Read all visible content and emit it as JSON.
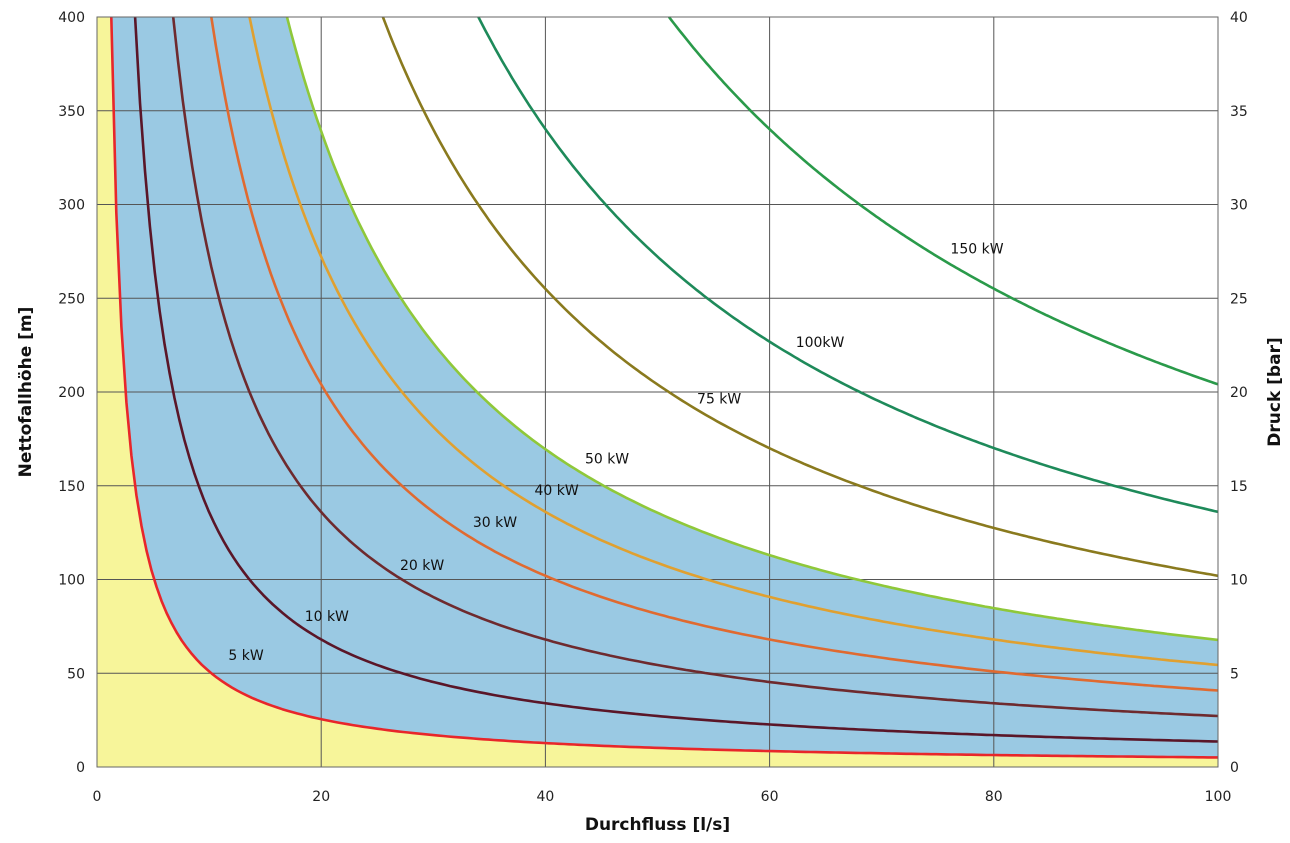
{
  "chart_data": {
    "type": "line",
    "xlabel": "Durchfluss [l/s]",
    "ylabel": "Nettofallhöhe [m]",
    "y2label": "Druck [bar]",
    "xlim": [
      0,
      100
    ],
    "ylim": [
      0,
      400
    ],
    "y2lim": [
      0,
      40
    ],
    "x_ticks": [
      0,
      20,
      40,
      60,
      80,
      100
    ],
    "y_ticks": [
      0,
      50,
      100,
      150,
      200,
      250,
      300,
      350,
      400
    ],
    "y2_ticks": [
      0,
      5,
      10,
      15,
      20,
      25,
      30,
      35,
      40
    ],
    "grid": true,
    "regions": [
      {
        "name": "below_5kW",
        "color": "#f7f59a",
        "bounded_by": [
          "axis",
          "5 kW"
        ]
      },
      {
        "name": "5_to_50kW",
        "color": "#9ac9e3",
        "bounded_by": [
          "5 kW",
          "50 kW"
        ]
      }
    ],
    "series": [
      {
        "name": "5 kW",
        "power_kw": 5,
        "color": "#e8262a",
        "label": {
          "x": 13.3,
          "y": 57
        },
        "x": [
          1.27,
          2,
          5,
          10,
          13.3,
          20,
          40,
          60,
          80,
          100
        ],
        "values": [
          400,
          255,
          102,
          51,
          38.3,
          25.5,
          12.7,
          8.5,
          6.4,
          5.1
        ]
      },
      {
        "name": "10 kW",
        "power_kw": 10,
        "color": "#5a1628",
        "label": {
          "x": 20.5,
          "y": 78
        },
        "x": [
          3.3,
          5,
          10,
          20,
          40,
          60,
          80,
          100
        ],
        "values": [
          400,
          270,
          135,
          68,
          34,
          22.7,
          17,
          13.5
        ]
      },
      {
        "name": "20 kW",
        "power_kw": 20,
        "color": "#6e2a2e",
        "label": {
          "x": 29,
          "y": 105
        },
        "x": [
          6.8,
          10,
          20,
          29,
          40,
          60,
          80,
          100
        ],
        "values": [
          400,
          272,
          136,
          94,
          68,
          45.3,
          34,
          27.2
        ]
      },
      {
        "name": "30 kW",
        "power_kw": 30,
        "color": "#e06a30",
        "label": {
          "x": 35.5,
          "y": 128
        },
        "x": [
          10.2,
          20,
          35.5,
          40,
          60,
          80,
          100
        ],
        "values": [
          400,
          204,
          115,
          102,
          68,
          51,
          40.8
        ]
      },
      {
        "name": "40 kW",
        "power_kw": 40,
        "color": "#e0a030",
        "label": {
          "x": 41,
          "y": 145
        },
        "x": [
          13.6,
          20,
          41,
          60,
          80,
          100
        ],
        "values": [
          400,
          272,
          133,
          90.7,
          68,
          54.4
        ]
      },
      {
        "name": "50 kW",
        "power_kw": 50,
        "color": "#8fc83a",
        "label": {
          "x": 45.5,
          "y": 162
        },
        "x": [
          17,
          20,
          40,
          45.5,
          60,
          80,
          100
        ],
        "values": [
          400,
          340,
          170,
          149,
          113,
          85,
          68
        ]
      },
      {
        "name": "75 kW",
        "power_kw": 75,
        "color": "#8a7a1e",
        "label": {
          "x": 55.5,
          "y": 194
        },
        "x": [
          25.5,
          40,
          55.5,
          60,
          80,
          100
        ],
        "values": [
          400,
          255,
          184,
          170,
          127.5,
          102
        ]
      },
      {
        "name": "100kW",
        "power_kw": 100,
        "color": "#1e8a5a",
        "label": {
          "x": 64.5,
          "y": 224
        },
        "x": [
          34,
          40,
          60,
          64.5,
          80,
          100
        ],
        "values": [
          400,
          340,
          227,
          211,
          170,
          136
        ]
      },
      {
        "name": "150 kW",
        "power_kw": 150,
        "color": "#2a9a4a",
        "label": {
          "x": 78.5,
          "y": 274
        },
        "x": [
          51,
          60,
          78.5,
          80,
          100
        ],
        "values": [
          400,
          340,
          260,
          255,
          204
        ]
      }
    ]
  }
}
